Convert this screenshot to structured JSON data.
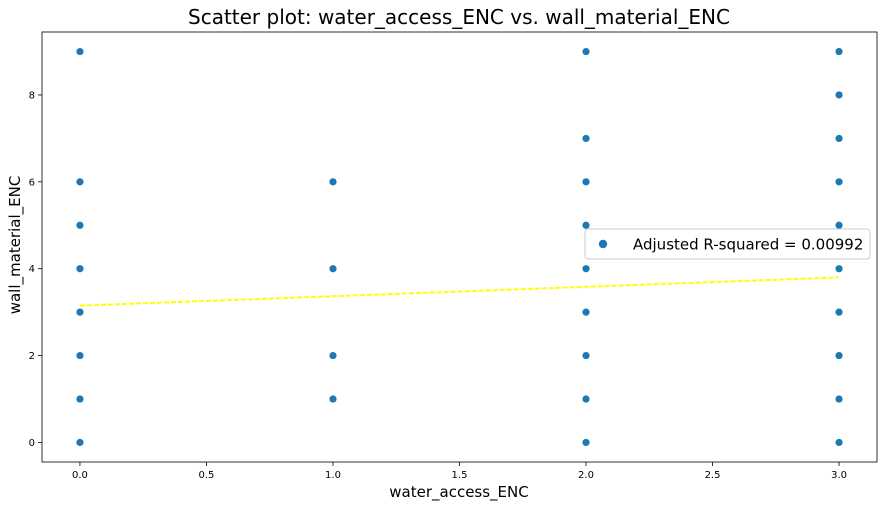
{
  "chart_data": {
    "type": "scatter",
    "title": "Scatter plot: water_access_ENC vs. wall_material_ENC",
    "xlabel": "water_access_ENC",
    "ylabel": "wall_material_ENC",
    "xlim": [
      -0.15,
      3.15
    ],
    "ylim": [
      -0.45,
      9.45
    ],
    "x_ticks": [
      0.0,
      0.5,
      1.0,
      1.5,
      2.0,
      2.5,
      3.0
    ],
    "x_tick_labels": [
      "0.0",
      "0.5",
      "1.0",
      "1.5",
      "2.0",
      "2.5",
      "3.0"
    ],
    "y_ticks": [
      0,
      2,
      4,
      6,
      8
    ],
    "y_tick_labels": [
      "0",
      "2",
      "4",
      "6",
      "8"
    ],
    "grid": false,
    "series": [
      {
        "name": "Adjusted R-squared = 0.00992",
        "color": "#1f77b4",
        "points": [
          [
            0,
            0
          ],
          [
            0,
            1
          ],
          [
            0,
            2
          ],
          [
            0,
            3
          ],
          [
            0,
            4
          ],
          [
            0,
            5
          ],
          [
            0,
            6
          ],
          [
            0,
            9
          ],
          [
            1,
            1
          ],
          [
            1,
            2
          ],
          [
            1,
            4
          ],
          [
            1,
            6
          ],
          [
            2,
            0
          ],
          [
            2,
            1
          ],
          [
            2,
            2
          ],
          [
            2,
            3
          ],
          [
            2,
            4
          ],
          [
            2,
            5
          ],
          [
            2,
            6
          ],
          [
            2,
            7
          ],
          [
            2,
            9
          ],
          [
            3,
            0
          ],
          [
            3,
            1
          ],
          [
            3,
            2
          ],
          [
            3,
            3
          ],
          [
            3,
            4
          ],
          [
            3,
            5
          ],
          [
            3,
            6
          ],
          [
            3,
            7
          ],
          [
            3,
            8
          ],
          [
            3,
            9
          ]
        ]
      }
    ],
    "trend_line": {
      "color": "#ffff00",
      "style": "dashed",
      "points": [
        [
          0,
          3.15
        ],
        [
          3,
          3.8
        ]
      ]
    },
    "legend": {
      "placement": "center-right",
      "entries": [
        "Adjusted R-squared = 0.00992"
      ]
    }
  }
}
